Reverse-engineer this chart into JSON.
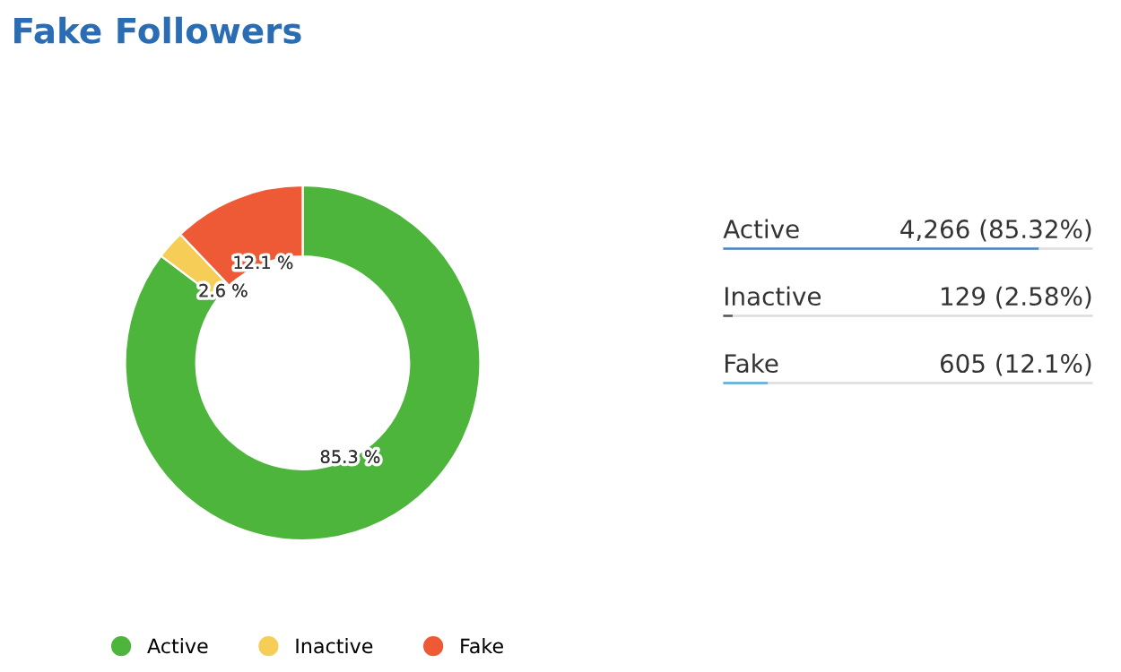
{
  "chart_data": [
    {
      "type": "donut",
      "title": "Fake Followers",
      "categories": [
        "Active",
        "Inactive",
        "Fake"
      ],
      "values": [
        85.3,
        2.6,
        12.1
      ],
      "colors": [
        "#4db53c",
        "#f5cd57",
        "#ee5a35"
      ],
      "value_labels": [
        "85.3 %",
        "2.6 %",
        "12.1 %"
      ],
      "legend": "bottom"
    },
    {
      "type": "bar",
      "orientation": "horizontal",
      "categories": [
        "Active",
        "Inactive",
        "Fake"
      ],
      "values": [
        4266,
        129,
        605
      ],
      "colors": [
        "#4a86c0",
        "#555555",
        "#5aaee0"
      ],
      "value_labels": [
        "4,266 (85.32%)",
        "129 (2.58%)",
        "605 (12.1%)"
      ],
      "xlim": [
        0,
        5000
      ]
    }
  ]
}
